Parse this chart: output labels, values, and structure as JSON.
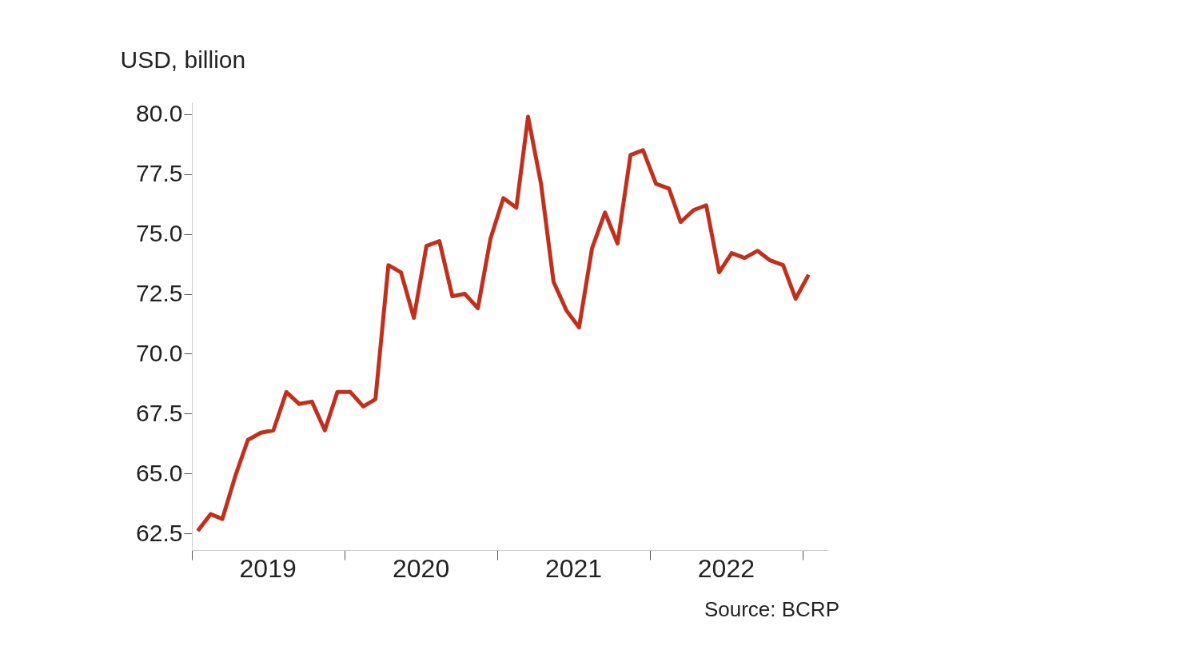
{
  "chart_data": {
    "type": "line",
    "ylabel": "USD, billion",
    "x": [
      "2019-01-15",
      "2019-02-15",
      "2019-03-15",
      "2019-04-15",
      "2019-05-15",
      "2019-06-15",
      "2019-07-15",
      "2019-08-15",
      "2019-09-15",
      "2019-10-15",
      "2019-11-15",
      "2019-12-15",
      "2020-01-15",
      "2020-02-15",
      "2020-03-15",
      "2020-04-15",
      "2020-05-15",
      "2020-06-15",
      "2020-07-15",
      "2020-08-15",
      "2020-09-15",
      "2020-10-15",
      "2020-11-15",
      "2020-12-15",
      "2021-01-15",
      "2021-02-15",
      "2021-03-15",
      "2021-04-15",
      "2021-05-15",
      "2021-06-15",
      "2021-07-15",
      "2021-08-15",
      "2021-09-15",
      "2021-10-15",
      "2021-11-15",
      "2021-12-15",
      "2022-01-15",
      "2022-02-15",
      "2022-03-15",
      "2022-04-15",
      "2022-05-15",
      "2022-06-15",
      "2022-07-15",
      "2022-08-15",
      "2022-09-15",
      "2022-10-15",
      "2022-11-15",
      "2022-12-15",
      "2023-01-15"
    ],
    "series": [
      {
        "color": "#c0301c",
        "values": [
          62.6,
          63.3,
          63.1,
          64.9,
          66.4,
          66.7,
          66.8,
          68.4,
          67.9,
          68.0,
          66.8,
          68.4,
          68.4,
          67.8,
          68.1,
          73.7,
          73.4,
          71.5,
          74.5,
          74.7,
          72.4,
          72.5,
          71.9,
          74.8,
          76.5,
          76.1,
          79.9,
          77.1,
          73.0,
          71.8,
          71.1,
          74.4,
          75.9,
          74.6,
          78.3,
          78.5,
          77.1,
          76.9,
          75.5,
          76.0,
          76.2,
          73.4,
          74.2,
          74.0,
          74.3,
          73.9,
          73.7,
          72.3,
          73.3
        ]
      }
    ],
    "xlim": [
      "2019-01-01",
      "2023-03-01"
    ],
    "xticks": [
      {
        "value": "2019-01-01",
        "label": null
      },
      {
        "value": "2019-07-01",
        "label": "2019"
      },
      {
        "value": "2020-01-01",
        "label": null
      },
      {
        "value": "2020-07-01",
        "label": "2020"
      },
      {
        "value": "2021-01-01",
        "label": null
      },
      {
        "value": "2021-07-01",
        "label": "2021"
      },
      {
        "value": "2022-01-01",
        "label": null
      },
      {
        "value": "2022-07-01",
        "label": "2022"
      },
      {
        "value": "2023-01-01",
        "label": null
      }
    ],
    "ylim": [
      61.8,
      80.5
    ],
    "yticks": [
      {
        "value": 62.5,
        "label": "62.5"
      },
      {
        "value": 65,
        "label": "65.0"
      },
      {
        "value": 67.5,
        "label": "67.5"
      },
      {
        "value": 70,
        "label": "70.0"
      },
      {
        "value": 72.5,
        "label": "72.5"
      },
      {
        "value": 75,
        "label": "75.0"
      },
      {
        "value": 77.5,
        "label": "77.5"
      },
      {
        "value": 80,
        "label": "80.0"
      }
    ],
    "grid": false,
    "marker": "none",
    "line_style": "solid",
    "annotations": [
      "Source: BCRP"
    ]
  }
}
